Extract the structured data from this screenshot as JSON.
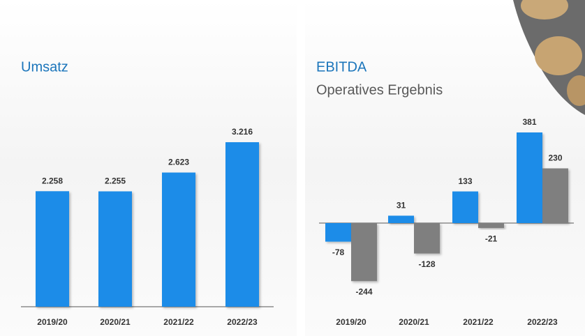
{
  "chart_data": [
    {
      "type": "bar",
      "title": "Umsatz",
      "categories": [
        "2019/20",
        "2020/21",
        "2021/22",
        "2022/23"
      ],
      "values": [
        2258,
        2255,
        2623,
        3216
      ],
      "value_labels": [
        "2.258",
        "2.255",
        "2.623",
        "3.216"
      ],
      "color": "#1a8ce8"
    },
    {
      "type": "grouped-bar",
      "categories": [
        "2019/20",
        "2020/21",
        "2021/22",
        "2022/23"
      ],
      "series": [
        {
          "name": "EBITDA",
          "color": "#1a8ce8",
          "values": [
            -78,
            31,
            133,
            381
          ]
        },
        {
          "name": "Operatives Ergebnis",
          "color": "#7f7f7f",
          "values": [
            -244,
            -128,
            -21,
            230
          ]
        }
      ]
    }
  ]
}
